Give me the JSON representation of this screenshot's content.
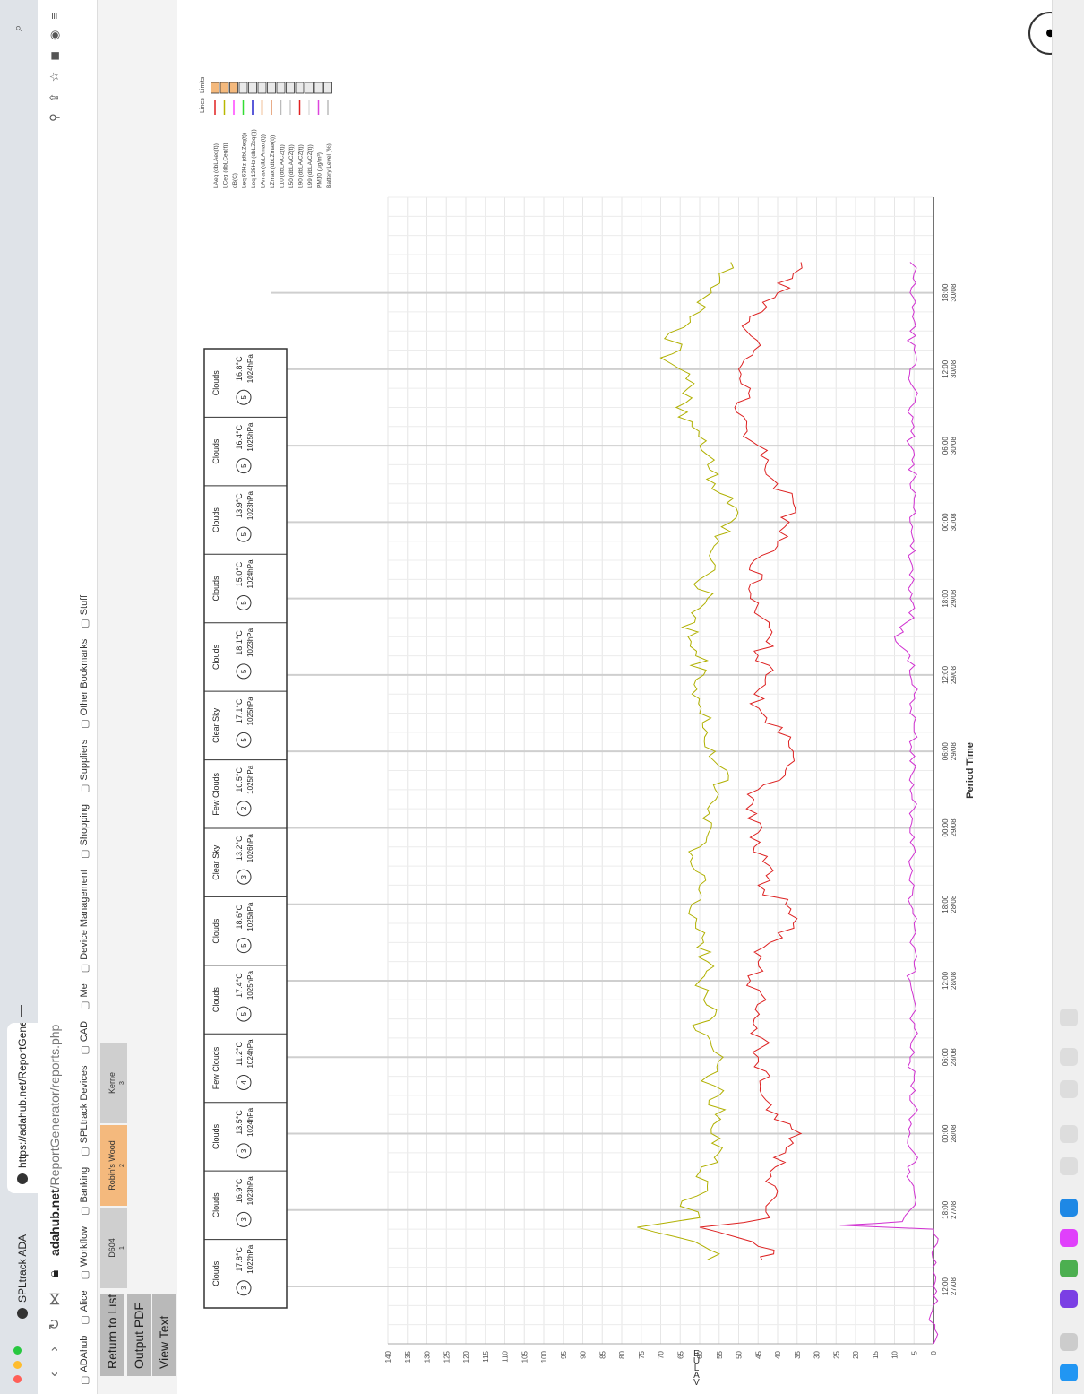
{
  "browser": {
    "tabs": [
      {
        "label": "SPLtrack ADA"
      },
      {
        "label": "https://adahub.net/ReportGene"
      }
    ],
    "url": {
      "host": "adahub.net",
      "path": "/ReportGenerator/reports.php"
    },
    "bookmarks": [
      "ADAhub",
      "Alice",
      "Workflow",
      "Banking",
      "SPLtrack Devices",
      "CAD",
      "Me",
      "Device Management",
      "Shopping",
      "Suppliers",
      "Other Bookmarks",
      "Stuff"
    ]
  },
  "page": {
    "buttons": {
      "return": "Return to List",
      "pdf": "Output PDF",
      "text": "View Text"
    },
    "sites": [
      {
        "name": "D604",
        "num": "1"
      },
      {
        "name": "Robin's Wood",
        "num": "2"
      },
      {
        "name": "Kerne",
        "num": "3"
      }
    ]
  },
  "weather": [
    {
      "cond": "Clouds",
      "wind": "3",
      "temp": "17.8°C",
      "press": "1022hPa"
    },
    {
      "cond": "Clouds",
      "wind": "3",
      "temp": "16.9°C",
      "press": "1023hPa"
    },
    {
      "cond": "Clouds",
      "wind": "3",
      "temp": "13.5°C",
      "press": "1024hPa"
    },
    {
      "cond": "Few Clouds",
      "wind": "4",
      "temp": "11.2°C",
      "press": "1024hPa"
    },
    {
      "cond": "Clouds",
      "wind": "5",
      "temp": "17.4°C",
      "press": "1025hPa"
    },
    {
      "cond": "Clouds",
      "wind": "5",
      "temp": "18.6°C",
      "press": "1025hPa"
    },
    {
      "cond": "Clear Sky",
      "wind": "3",
      "temp": "13.2°C",
      "press": "1026hPa"
    },
    {
      "cond": "Few Clouds",
      "wind": "2",
      "temp": "10.5°C",
      "press": "1025hPa"
    },
    {
      "cond": "Clear Sky",
      "wind": "5",
      "temp": "17.1°C",
      "press": "1025hPa"
    },
    {
      "cond": "Clouds",
      "wind": "5",
      "temp": "18.1°C",
      "press": "1023hPa"
    },
    {
      "cond": "Clouds",
      "wind": "5",
      "temp": "15.0°C",
      "press": "1024hPa"
    },
    {
      "cond": "Clouds",
      "wind": "5",
      "temp": "13.9°C",
      "press": "1023hPa"
    },
    {
      "cond": "Clouds",
      "wind": "5",
      "temp": "16.4°C",
      "press": "1025hPa"
    },
    {
      "cond": "Clouds",
      "wind": "5",
      "temp": "16.8°C",
      "press": "1024hPa"
    }
  ],
  "chart_data": {
    "type": "line",
    "xlabel": "Period Time",
    "ylabel": "VALUE",
    "ylim": [
      0,
      140
    ],
    "yticks": [
      0,
      5,
      10,
      15,
      20,
      25,
      30,
      35,
      40,
      45,
      50,
      55,
      60,
      65,
      70,
      75,
      80,
      85,
      90,
      95,
      100,
      105,
      110,
      115,
      120,
      125,
      130,
      135,
      140
    ],
    "xticks": [
      {
        "time": "12:00",
        "date": "27/08"
      },
      {
        "time": "18:00",
        "date": "27/08"
      },
      {
        "time": "00:00",
        "date": "28/08"
      },
      {
        "time": "06:00",
        "date": "28/08"
      },
      {
        "time": "12:00",
        "date": "28/08"
      },
      {
        "time": "18:00",
        "date": "28/08"
      },
      {
        "time": "00:00",
        "date": "29/08"
      },
      {
        "time": "06:00",
        "date": "29/08"
      },
      {
        "time": "12:00",
        "date": "29/08"
      },
      {
        "time": "18:00",
        "date": "29/08"
      },
      {
        "time": "00:00",
        "date": "30/08"
      },
      {
        "time": "06:00",
        "date": "30/08"
      },
      {
        "time": "12:00",
        "date": "30/08"
      },
      {
        "time": "18:00",
        "date": "30/08"
      }
    ],
    "legend": [
      {
        "name": "LAeq (dbLAeq(t))",
        "color": "#e02020"
      },
      {
        "name": "LCeq (dbLCeq(t))",
        "color": "#b8b800"
      },
      {
        "name": "dB(C)",
        "color": "#ff44ff"
      },
      {
        "name": "Leq 63Hz (dbLZeq(t))",
        "color": "#33dd33"
      },
      {
        "name": "Leq 125Hz (dbLZeq(t))",
        "color": "#2222cc"
      },
      {
        "name": "LAmax (dbLAmax(t))",
        "color": "#e08030"
      },
      {
        "name": "LZmax (dbLZmax(t))",
        "color": "#e09060"
      },
      {
        "name": "L10 (dbLA/CZ(t))",
        "color": "#bbbbbb"
      },
      {
        "name": "L50 (dbLA/CZ(t))",
        "color": "#cccccc"
      },
      {
        "name": "L90 (dbLA/CZ(t))",
        "color": "#e02020"
      },
      {
        "name": "L99 (dbLA/CZ(t))",
        "color": "#dddddd"
      },
      {
        "name": "PM10 (μg/m³)",
        "color": "#dd44dd"
      },
      {
        "name": "Battery Level (%)",
        "color": "#bbbbbb"
      }
    ],
    "legend_header": {
      "lines": "Lines",
      "limits": "Limits"
    },
    "series": [
      {
        "name": "LCeq (dbLCeq(t))",
        "color": "#b0b000",
        "points": [
          [
            2.2,
            58
          ],
          [
            2.35,
            55
          ],
          [
            2.55,
            59
          ],
          [
            3.05,
            76
          ],
          [
            3.3,
            60
          ],
          [
            3.6,
            65
          ],
          [
            4.0,
            58
          ],
          [
            4.5,
            60
          ],
          [
            5.0,
            55
          ],
          [
            5.5,
            57
          ],
          [
            6.0,
            56
          ],
          [
            6.5,
            55
          ],
          [
            7.0,
            58
          ],
          [
            7.5,
            54
          ],
          [
            7.8,
            57
          ],
          [
            8.2,
            61
          ],
          [
            8.6,
            56
          ],
          [
            9.0,
            59
          ],
          [
            9.5,
            60
          ],
          [
            10.0,
            58
          ],
          [
            10.5,
            59
          ],
          [
            11.0,
            61
          ],
          [
            11.5,
            62
          ],
          [
            12.0,
            60
          ],
          [
            12.5,
            62
          ],
          [
            13.0,
            60
          ],
          [
            13.5,
            57
          ],
          [
            14.0,
            58
          ],
          [
            14.5,
            56
          ],
          [
            15.0,
            53
          ],
          [
            15.5,
            56
          ],
          [
            16.0,
            58
          ],
          [
            16.5,
            60
          ],
          [
            17.0,
            62
          ],
          [
            17.5,
            59
          ],
          [
            18.0,
            61
          ],
          [
            18.5,
            63
          ],
          [
            19.0,
            61
          ],
          [
            19.5,
            58
          ],
          [
            20.0,
            60
          ],
          [
            20.5,
            57
          ],
          [
            21.0,
            55
          ],
          [
            21.5,
            52
          ],
          [
            22.0,
            53
          ],
          [
            22.5,
            56
          ],
          [
            23.0,
            58
          ],
          [
            23.5,
            60
          ],
          [
            24.0,
            62
          ],
          [
            24.5,
            66
          ],
          [
            25.0,
            63
          ],
          [
            25.5,
            65
          ],
          [
            25.8,
            70
          ],
          [
            26.0,
            65
          ],
          [
            26.3,
            69
          ],
          [
            26.6,
            64
          ],
          [
            27.0,
            60
          ],
          [
            27.5,
            57
          ],
          [
            28.0,
            55
          ],
          [
            28.3,
            52
          ]
        ]
      },
      {
        "name": "LAeq (dbLAeq(t))",
        "color": "#dd2020",
        "points": [
          [
            2.2,
            44
          ],
          [
            2.35,
            41
          ],
          [
            2.55,
            45
          ],
          [
            3.05,
            60
          ],
          [
            3.3,
            42
          ],
          [
            3.6,
            43
          ],
          [
            4.0,
            40
          ],
          [
            4.5,
            42
          ],
          [
            5.0,
            38
          ],
          [
            5.5,
            34
          ],
          [
            6.0,
            40
          ],
          [
            6.5,
            44
          ],
          [
            7.0,
            42
          ],
          [
            7.5,
            45
          ],
          [
            8.0,
            44
          ],
          [
            8.5,
            46
          ],
          [
            9.0,
            43
          ],
          [
            9.5,
            47
          ],
          [
            10.0,
            45
          ],
          [
            10.5,
            42
          ],
          [
            11.0,
            36
          ],
          [
            11.5,
            38
          ],
          [
            12.0,
            45
          ],
          [
            12.5,
            42
          ],
          [
            13.0,
            46
          ],
          [
            13.5,
            44
          ],
          [
            14.0,
            48
          ],
          [
            14.5,
            45
          ],
          [
            15.0,
            38
          ],
          [
            15.5,
            36
          ],
          [
            16.0,
            40
          ],
          [
            16.5,
            44
          ],
          [
            17.0,
            46
          ],
          [
            17.5,
            43
          ],
          [
            18.0,
            45
          ],
          [
            18.5,
            42
          ],
          [
            19.0,
            44
          ],
          [
            19.5,
            47
          ],
          [
            20.0,
            44
          ],
          [
            20.5,
            46
          ],
          [
            21.0,
            40
          ],
          [
            21.5,
            37
          ],
          [
            22.0,
            36
          ],
          [
            22.5,
            40
          ],
          [
            23.0,
            43
          ],
          [
            23.5,
            45
          ],
          [
            24.0,
            48
          ],
          [
            24.5,
            51
          ],
          [
            25.0,
            47
          ],
          [
            25.5,
            50
          ],
          [
            26.0,
            46
          ],
          [
            26.5,
            48
          ],
          [
            27.0,
            44
          ],
          [
            27.5,
            40
          ],
          [
            28.0,
            36
          ],
          [
            28.3,
            34
          ]
        ]
      },
      {
        "name": "PM10 (μg/m³)",
        "color": "#d030d0",
        "points": [
          [
            0,
            0
          ],
          [
            3.0,
            0
          ],
          [
            3.1,
            24
          ],
          [
            3.2,
            8
          ],
          [
            3.5,
            6
          ],
          [
            4.0,
            5
          ],
          [
            4.5,
            6
          ],
          [
            5.0,
            5
          ],
          [
            5.5,
            6
          ],
          [
            6.0,
            5
          ],
          [
            6.5,
            6
          ],
          [
            7.0,
            5
          ],
          [
            7.5,
            6
          ],
          [
            8.0,
            5
          ],
          [
            8.5,
            6
          ],
          [
            9.0,
            5
          ],
          [
            9.5,
            6
          ],
          [
            10.0,
            5
          ],
          [
            10.5,
            6
          ],
          [
            11.0,
            5
          ],
          [
            11.5,
            6
          ],
          [
            12.0,
            5
          ],
          [
            12.5,
            6
          ],
          [
            13.0,
            5
          ],
          [
            13.5,
            6
          ],
          [
            14.0,
            5
          ],
          [
            14.5,
            6
          ],
          [
            15.0,
            5
          ],
          [
            15.5,
            6
          ],
          [
            16.0,
            5
          ],
          [
            16.5,
            6
          ],
          [
            17.0,
            5
          ],
          [
            17.5,
            6
          ],
          [
            18.0,
            6
          ],
          [
            18.5,
            10
          ],
          [
            19.0,
            5
          ],
          [
            19.5,
            6
          ],
          [
            20.0,
            5
          ],
          [
            20.5,
            6
          ],
          [
            21.0,
            5
          ],
          [
            21.5,
            6
          ],
          [
            22.0,
            5
          ],
          [
            22.5,
            6
          ],
          [
            23.0,
            5
          ],
          [
            23.5,
            6
          ],
          [
            24.0,
            5
          ],
          [
            24.5,
            6
          ],
          [
            25.0,
            5
          ],
          [
            25.5,
            6
          ],
          [
            26.0,
            5
          ],
          [
            26.5,
            6
          ],
          [
            27.0,
            5
          ],
          [
            27.5,
            6
          ],
          [
            28.0,
            5
          ],
          [
            28.3,
            6
          ]
        ]
      }
    ],
    "period_hours_per_unit": 3
  }
}
